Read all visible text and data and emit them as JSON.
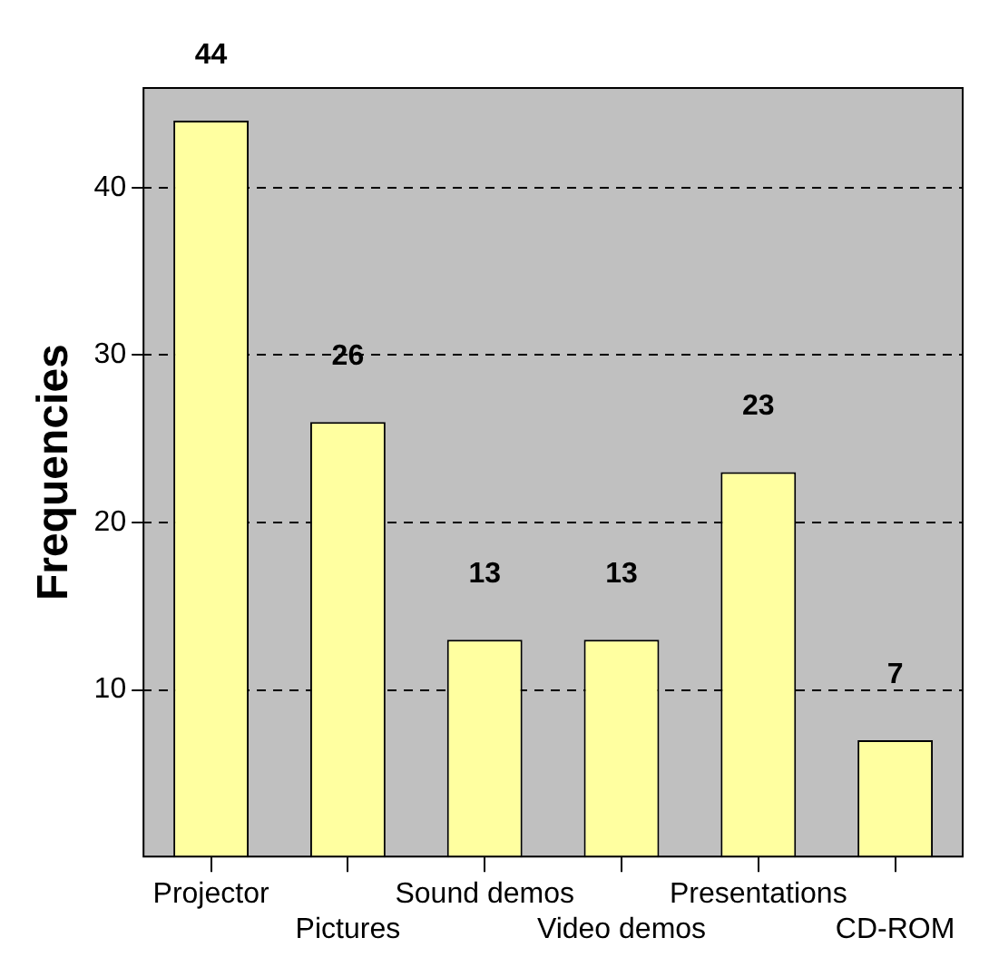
{
  "chart_data": {
    "type": "bar",
    "ylabel": "Frequencies",
    "categories": [
      "Projector",
      "Pictures",
      "Sound demos",
      "Video demos",
      "Presentations",
      "CD-ROM"
    ],
    "values": [
      44,
      26,
      13,
      13,
      23,
      7
    ],
    "color": "#ffffa0",
    "ylim": [
      0,
      46
    ],
    "yticks": [
      10,
      20,
      30,
      40
    ],
    "grid": "y",
    "legend": false,
    "data_labels": true
  }
}
